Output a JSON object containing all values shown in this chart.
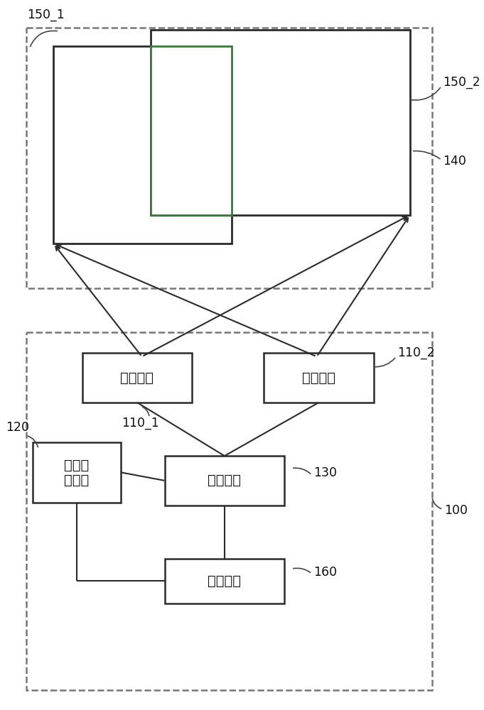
{
  "bg_color": "#ffffff",
  "line_color": "#2a2a2a",
  "dashed_color": "#777777",
  "green_color": "#3a7a3a",
  "box_fill": "#ffffff",
  "label_150_1": "150_1",
  "label_150_2": "150_2",
  "label_140": "140",
  "label_110_1": "110_1",
  "label_110_2": "110_2",
  "label_120": "120",
  "label_130": "130",
  "label_160": "160",
  "label_100": "100",
  "text_proj1": "投影装置",
  "text_proj2": "投影装置",
  "text_splicing": "拼接装置",
  "text_capture_l1": "画面截",
  "text_capture_l2": "取装置",
  "text_calc": "计算装置"
}
